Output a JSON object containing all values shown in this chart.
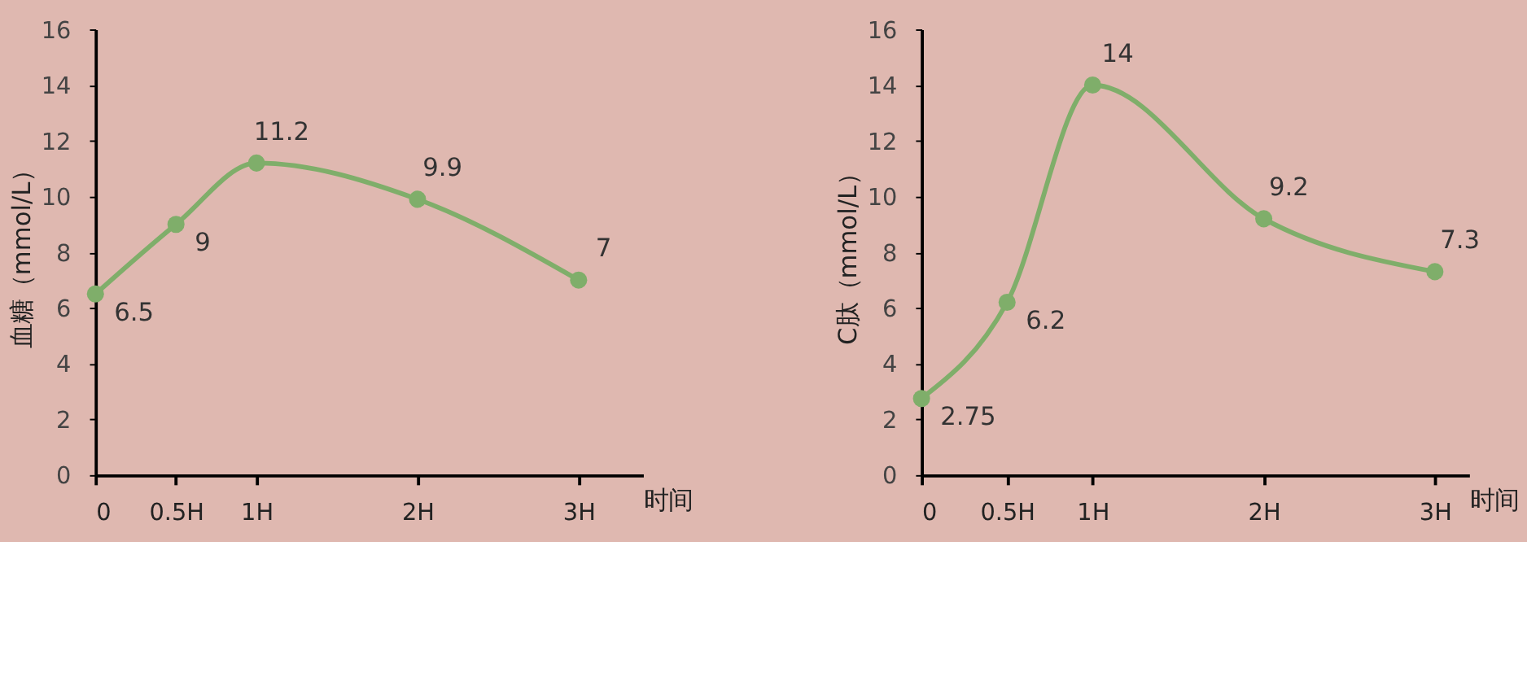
{
  "chart_data": [
    {
      "type": "line",
      "xlabel": "时间",
      "ylabel": "血糖（mmol/L）",
      "x": [
        0,
        0.5,
        1,
        2,
        3
      ],
      "series": [
        {
          "color": "#7fae6a",
          "values": [
            6.5,
            9,
            11.2,
            9.9,
            7
          ]
        }
      ],
      "xlim": [
        0,
        3.4
      ],
      "xticks": [
        0,
        {
          "value": 0.5,
          "label": "0.5H"
        },
        {
          "value": 1,
          "label": "1H"
        },
        {
          "value": 2,
          "label": "2H"
        },
        {
          "value": 3,
          "label": "3H"
        }
      ],
      "ylim": [
        0,
        16
      ],
      "yticks": [
        0,
        2,
        4,
        6,
        8,
        10,
        12,
        14,
        16
      ],
      "data_labels": true,
      "marker": "circle",
      "grid": false
    },
    {
      "type": "line",
      "xlabel": "时间",
      "ylabel": "C肽（mmol/L）",
      "x": [
        0,
        0.5,
        1,
        2,
        3
      ],
      "series": [
        {
          "color": "#7fae6a",
          "values": [
            2.75,
            6.2,
            14,
            9.2,
            7.3
          ]
        }
      ],
      "xlim": [
        0,
        3.2
      ],
      "xticks": [
        0,
        {
          "value": 0.5,
          "label": "0.5H"
        },
        {
          "value": 1,
          "label": "1H"
        },
        {
          "value": 2,
          "label": "2H"
        },
        {
          "value": 3,
          "label": "3H"
        }
      ],
      "ylim": [
        0,
        16
      ],
      "yticks": [
        0,
        2,
        4,
        6,
        8,
        10,
        12,
        14,
        16
      ],
      "data_labels": true,
      "marker": "circle",
      "grid": false
    }
  ]
}
